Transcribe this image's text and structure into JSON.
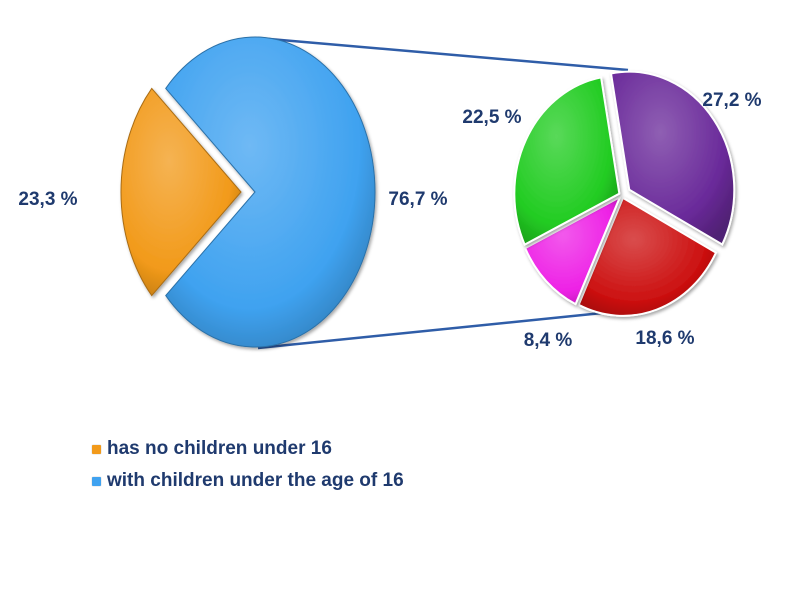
{
  "chart_data": {
    "type": "pie",
    "variant": "bar-of-pie",
    "main_pie": {
      "slices": [
        {
          "name": "has no children under 16",
          "value": 23.3,
          "label": "23,3 %",
          "color": "#f29a1a",
          "exploded": true
        },
        {
          "name": "with children under the age of 16",
          "value": 76.7,
          "label": "76,7 %",
          "color": "#3fa2f0",
          "exploded": false
        }
      ]
    },
    "secondary_pie": {
      "parent_slice": "with children under the age of 16",
      "slices": [
        {
          "value": 27.2,
          "label": "27,2 %",
          "color": "#6a2a9a",
          "exploded": true
        },
        {
          "value": 18.6,
          "label": "18,6 %",
          "color": "#cc1111",
          "exploded": false
        },
        {
          "value": 8.4,
          "label": "8,4 %",
          "color": "#ee22e6",
          "exploded": false
        },
        {
          "value": 22.5,
          "label": "22,5 %",
          "color": "#22cc22",
          "exploded": false
        }
      ]
    },
    "connector_color": "#2f5da8",
    "legend_placement": "bottom-left",
    "legend": [
      {
        "name": "has no children under 16",
        "color": "#f29a1a"
      },
      {
        "name": "with children under the age of 16",
        "color": "#3fa2f0"
      }
    ]
  }
}
